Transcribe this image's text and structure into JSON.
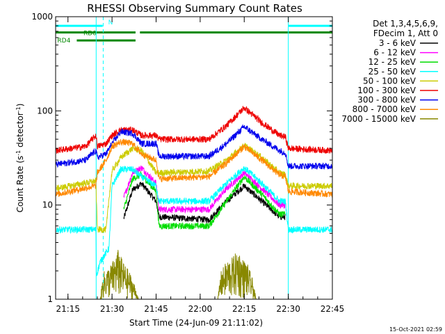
{
  "chart_data": {
    "type": "line",
    "title": "RHESSI Observing Summary Count Rates",
    "xlabel": "Start Time (24-Jun-09 21:11:02)",
    "ylabel_main": "Count Rate (s",
    "ylabel_sup1": "-1",
    "ylabel_mid": " detector",
    "ylabel_sup2": "-1",
    "ylabel_end": ")",
    "yscale": "log",
    "xlim_min": [
      3.8,
      98
    ],
    "ylim": [
      1,
      1000
    ],
    "x_ticks": [
      {
        "m": 8,
        "label": "21:15"
      },
      {
        "m": 23,
        "label": "21:30"
      },
      {
        "m": 38,
        "label": "21:45"
      },
      {
        "m": 53,
        "label": "22:00"
      },
      {
        "m": 68,
        "label": "22:15"
      },
      {
        "m": 83,
        "label": "22:30"
      },
      {
        "m": 98,
        "label": "22:45"
      }
    ],
    "y_ticks": [
      {
        "v": 1,
        "label": "1"
      },
      {
        "v": 10,
        "label": "10"
      },
      {
        "v": 100,
        "label": "100"
      },
      {
        "v": 1000,
        "label": "1000"
      }
    ],
    "legend": {
      "header1": "Det 1,3,4,5,6,9,",
      "header2": "FDecim 1, Att 0",
      "entries": [
        {
          "label": "3 - 6 keV",
          "color": "#000000"
        },
        {
          "label": "6 - 12 keV",
          "color": "#ff00ff"
        },
        {
          "label": "12 - 25 keV",
          "color": "#00dd00"
        },
        {
          "label": "25 - 50 keV",
          "color": "#00ffff"
        },
        {
          "label": "50 - 100 keV",
          "color": "#cccc00"
        },
        {
          "label": "100 - 300 keV",
          "color": "#ee0000"
        },
        {
          "label": "300 - 800 keV",
          "color": "#0000ee"
        },
        {
          "label": "800 - 7000 keV",
          "color": "#ff8800"
        },
        {
          "label": "7000 - 15000 keV",
          "color": "#888800"
        }
      ]
    },
    "series": [
      {
        "name": "3 - 6 keV",
        "color": "#000000",
        "points": [
          [
            27.0,
            7.2
          ],
          [
            30,
            14.5
          ],
          [
            33,
            17
          ],
          [
            38,
            11
          ],
          [
            39,
            7.5
          ],
          [
            56,
            7
          ],
          [
            62,
            11
          ],
          [
            68,
            16
          ],
          [
            74,
            11
          ],
          [
            80,
            7.5
          ],
          [
            82,
            7.5
          ]
        ]
      },
      {
        "name": "6 - 12 keV",
        "color": "#ff00ff",
        "points": [
          [
            27.0,
            12
          ],
          [
            30,
            22
          ],
          [
            33,
            25
          ],
          [
            38,
            17
          ],
          [
            39,
            9
          ],
          [
            56,
            9
          ],
          [
            62,
            15
          ],
          [
            68,
            22
          ],
          [
            74,
            15
          ],
          [
            80,
            10
          ],
          [
            82,
            10
          ]
        ]
      },
      {
        "name": "12 - 25 keV",
        "color": "#00dd00",
        "points": [
          [
            27.0,
            9
          ],
          [
            30,
            19
          ],
          [
            33,
            21
          ],
          [
            38,
            14
          ],
          [
            39,
            6
          ],
          [
            56,
            6
          ],
          [
            62,
            11
          ],
          [
            68,
            20
          ],
          [
            74,
            13
          ],
          [
            80,
            8
          ],
          [
            82,
            8
          ]
        ]
      },
      {
        "name": "25 - 50 keV",
        "color": "#00ffff",
        "points": [
          [
            4,
            5.5
          ],
          [
            17.5,
            5.5
          ],
          [
            17.7,
            1.8
          ],
          [
            19,
            2.5
          ],
          [
            22,
            3.5
          ],
          [
            23,
            16
          ],
          [
            26,
            24
          ],
          [
            30,
            24
          ],
          [
            33,
            20
          ],
          [
            38,
            16
          ],
          [
            39,
            11
          ],
          [
            56,
            11
          ],
          [
            62,
            17
          ],
          [
            68,
            25
          ],
          [
            74,
            17
          ],
          [
            80,
            11
          ],
          [
            82,
            11
          ],
          [
            83,
            5.5
          ],
          [
            98,
            5.5
          ]
        ]
      },
      {
        "name": "50 - 100 keV",
        "color": "#cccc00",
        "points": [
          [
            4,
            15
          ],
          [
            17.5,
            18
          ],
          [
            18,
            5.5
          ],
          [
            21,
            5.5
          ],
          [
            22,
            12
          ],
          [
            23,
            23
          ],
          [
            26,
            32
          ],
          [
            30,
            40
          ],
          [
            33,
            38
          ],
          [
            38,
            22
          ],
          [
            39,
            22
          ],
          [
            56,
            23
          ],
          [
            62,
            30
          ],
          [
            68,
            43
          ],
          [
            74,
            32
          ],
          [
            80,
            22
          ],
          [
            82,
            21
          ],
          [
            83,
            16
          ],
          [
            98,
            16
          ]
        ]
      },
      {
        "name": "100 - 300 keV",
        "color": "#ee0000",
        "points": [
          [
            4,
            38
          ],
          [
            14,
            42
          ],
          [
            17.5,
            55
          ],
          [
            18,
            42
          ],
          [
            21,
            45
          ],
          [
            23,
            55
          ],
          [
            26,
            63
          ],
          [
            30,
            63
          ],
          [
            33,
            55
          ],
          [
            38,
            55
          ],
          [
            39,
            50
          ],
          [
            56,
            50
          ],
          [
            62,
            70
          ],
          [
            68,
            108
          ],
          [
            74,
            75
          ],
          [
            80,
            55
          ],
          [
            82,
            53
          ],
          [
            83,
            40
          ],
          [
            98,
            38
          ]
        ]
      },
      {
        "name": "300 - 800 keV",
        "color": "#0000ee",
        "points": [
          [
            4,
            27
          ],
          [
            14,
            30
          ],
          [
            17.5,
            38
          ],
          [
            18,
            32
          ],
          [
            21,
            35
          ],
          [
            23,
            45
          ],
          [
            26,
            60
          ],
          [
            30,
            58
          ],
          [
            33,
            45
          ],
          [
            38,
            45
          ],
          [
            39,
            33
          ],
          [
            56,
            33
          ],
          [
            62,
            45
          ],
          [
            68,
            68
          ],
          [
            74,
            50
          ],
          [
            80,
            38
          ],
          [
            82,
            36
          ],
          [
            83,
            26
          ],
          [
            98,
            26
          ]
        ]
      },
      {
        "name": "800 - 7000 keV",
        "color": "#ff8800",
        "points": [
          [
            4,
            13
          ],
          [
            17.5,
            16
          ],
          [
            18,
            22
          ],
          [
            21,
            30
          ],
          [
            23,
            42
          ],
          [
            26,
            47
          ],
          [
            30,
            45
          ],
          [
            33,
            35
          ],
          [
            38,
            30
          ],
          [
            39,
            19
          ],
          [
            56,
            20
          ],
          [
            62,
            28
          ],
          [
            68,
            42
          ],
          [
            74,
            30
          ],
          [
            80,
            21
          ],
          [
            82,
            20
          ],
          [
            83,
            14
          ],
          [
            98,
            13
          ]
        ]
      },
      {
        "name": "7000 - 15000 keV",
        "color": "#888800",
        "points": [
          [
            4,
            1
          ],
          [
            19,
            1
          ],
          [
            20,
            1.8
          ],
          [
            22,
            2
          ],
          [
            24,
            2.5
          ],
          [
            25,
            3
          ],
          [
            27,
            2.2
          ],
          [
            29,
            1.8
          ],
          [
            31,
            1.3
          ],
          [
            32,
            1
          ],
          [
            59,
            1
          ],
          [
            60,
            1.8
          ],
          [
            62,
            2.3
          ],
          [
            64,
            2.5
          ],
          [
            66,
            3
          ],
          [
            67,
            2.5
          ],
          [
            69,
            2.2
          ],
          [
            71,
            1.5
          ],
          [
            72,
            1
          ],
          [
            98,
            1
          ]
        ]
      }
    ],
    "flags": [
      {
        "label": "N",
        "color": "#00ffff",
        "ylevel": 800,
        "segments": [
          [
            3.8,
            19.8
          ],
          [
            83,
            98
          ]
        ]
      },
      {
        "label": "RD0",
        "color": "#008800",
        "ylevel": 680,
        "segments": [
          [
            3.8,
            31
          ],
          [
            32.5,
            98
          ]
        ]
      },
      {
        "label": "RD4",
        "color": "#008800",
        "ylevel": 560,
        "segments": [
          [
            11,
            31
          ]
        ]
      }
    ],
    "vlines_solid_cyan": [
      17.6,
      83
    ],
    "vlines_dashed_cyan": [
      20,
      98
    ]
  },
  "footer_date": "15-Oct-2021 02:59"
}
